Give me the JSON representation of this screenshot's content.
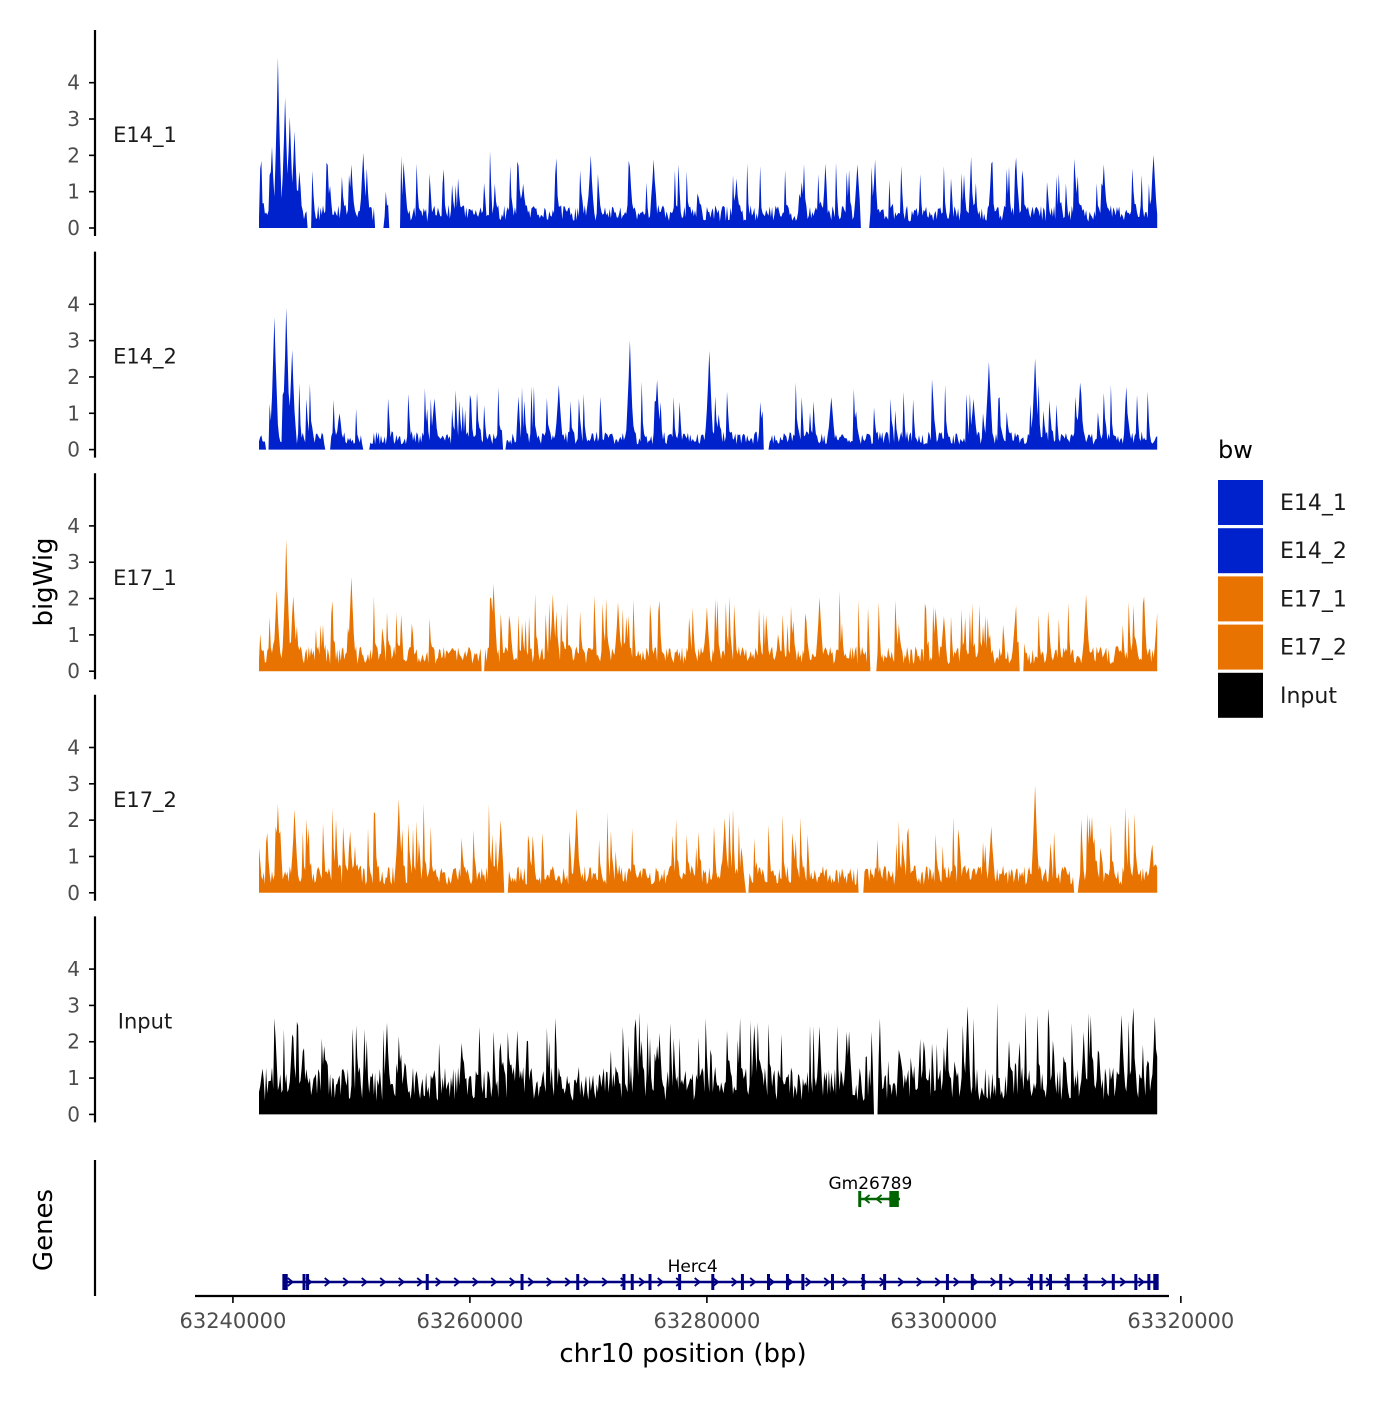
{
  "chart_data": {
    "type": "area",
    "title": "",
    "ylabel": "bigWig",
    "xlabel": "chr10 position (bp)",
    "genes_label": "Genes",
    "xlim": [
      63236800,
      63319000
    ],
    "x_ticks": [
      {
        "value": 63240000,
        "label": "63240000"
      },
      {
        "value": 63260000,
        "label": "63260000"
      },
      {
        "value": 63280000,
        "label": "63280000"
      },
      {
        "value": 63300000,
        "label": "63300000"
      },
      {
        "value": 63320000,
        "label": "63320000"
      }
    ],
    "ylim": [
      0,
      4.9
    ],
    "y_ticks": [
      {
        "value": 0,
        "label": "0"
      },
      {
        "value": 1,
        "label": "1"
      },
      {
        "value": 2,
        "label": "2"
      },
      {
        "value": 3,
        "label": "3"
      },
      {
        "value": 4,
        "label": "4"
      }
    ],
    "data_range": [
      63242200,
      63318000
    ],
    "legend": {
      "title": "bw",
      "position": "right",
      "items": [
        {
          "label": "E14_1",
          "color": "#0022CC"
        },
        {
          "label": "E14_2",
          "color": "#0022CC"
        },
        {
          "label": "E17_1",
          "color": "#E87300"
        },
        {
          "label": "E17_2",
          "color": "#E87300"
        },
        {
          "label": "Input",
          "color": "#000000"
        }
      ]
    },
    "series": [
      {
        "name": "E14_1",
        "color": "#0022CC",
        "seed": 11,
        "peaks": [
          {
            "x": 63243800,
            "y": 4.6
          },
          {
            "x": 63244400,
            "y": 3.5
          },
          {
            "x": 63243300,
            "y": 2.1
          },
          {
            "x": 63245200,
            "y": 2.6
          },
          {
            "x": 63244800,
            "y": 3.0
          },
          {
            "x": 63245600,
            "y": 1.5
          },
          {
            "x": 63250000,
            "y": 1.6
          },
          {
            "x": 63251000,
            "y": 2.0
          },
          {
            "x": 63254500,
            "y": 1.3
          },
          {
            "x": 63264500,
            "y": 1.2
          },
          {
            "x": 63270200,
            "y": 1.9
          },
          {
            "x": 63273500,
            "y": 1.6
          },
          {
            "x": 63275500,
            "y": 1.8
          },
          {
            "x": 63282500,
            "y": 1.3
          },
          {
            "x": 63288000,
            "y": 1.2
          },
          {
            "x": 63292700,
            "y": 1.7
          },
          {
            "x": 63304000,
            "y": 1.5
          },
          {
            "x": 63313500,
            "y": 1.6
          },
          {
            "x": 63317700,
            "y": 2.0
          }
        ],
        "gaps": [
          [
            63246300,
            63246600
          ],
          [
            63252000,
            63252700
          ],
          [
            63253200,
            63254100
          ],
          [
            63293000,
            63293700
          ]
        ],
        "base": 0.5,
        "noise_amp": 0.55,
        "freq": 0.95
      },
      {
        "name": "E14_2",
        "color": "#0022CC",
        "seed": 23,
        "peaks": [
          {
            "x": 63243500,
            "y": 3.6
          },
          {
            "x": 63244500,
            "y": 3.9
          },
          {
            "x": 63245000,
            "y": 2.7
          },
          {
            "x": 63249000,
            "y": 1.0
          },
          {
            "x": 63257000,
            "y": 1.4
          },
          {
            "x": 63267500,
            "y": 1.7
          },
          {
            "x": 63273500,
            "y": 3.0
          },
          {
            "x": 63275800,
            "y": 1.8
          },
          {
            "x": 63280200,
            "y": 2.7
          },
          {
            "x": 63290500,
            "y": 1.4
          },
          {
            "x": 63302500,
            "y": 1.4
          },
          {
            "x": 63303800,
            "y": 2.4
          },
          {
            "x": 63307700,
            "y": 2.4
          },
          {
            "x": 63311500,
            "y": 1.7
          },
          {
            "x": 63315500,
            "y": 0.9
          }
        ],
        "gaps": [
          [
            63242800,
            63243000
          ],
          [
            63247800,
            63248200
          ],
          [
            63251000,
            63251500
          ],
          [
            63262800,
            63263000
          ],
          [
            63284800,
            63285200
          ]
        ],
        "base": 0.4,
        "noise_amp": 0.55,
        "freq": 0.9
      },
      {
        "name": "E17_1",
        "color": "#E87300",
        "seed": 37,
        "peaks": [
          {
            "x": 63244500,
            "y": 3.6
          },
          {
            "x": 63243700,
            "y": 2.2
          },
          {
            "x": 63245100,
            "y": 2.0
          },
          {
            "x": 63250000,
            "y": 2.5
          },
          {
            "x": 63262000,
            "y": 2.4
          },
          {
            "x": 63267000,
            "y": 2.0
          },
          {
            "x": 63272500,
            "y": 1.8
          },
          {
            "x": 63280000,
            "y": 1.7
          },
          {
            "x": 63289500,
            "y": 2.0
          },
          {
            "x": 63300000,
            "y": 1.5
          },
          {
            "x": 63306000,
            "y": 1.3
          },
          {
            "x": 63312000,
            "y": 2.0
          },
          {
            "x": 63318000,
            "y": 1.6
          }
        ],
        "gaps": [
          [
            63293800,
            63294300
          ],
          [
            63306400,
            63306700
          ],
          [
            63261000,
            63261200
          ]
        ],
        "base": 0.55,
        "noise_amp": 0.6,
        "freq": 1.0
      },
      {
        "name": "E17_2",
        "color": "#E87300",
        "seed": 53,
        "peaks": [
          {
            "x": 63243800,
            "y": 2.4
          },
          {
            "x": 63245200,
            "y": 2.2
          },
          {
            "x": 63254000,
            "y": 2.5
          },
          {
            "x": 63262600,
            "y": 1.9
          },
          {
            "x": 63269000,
            "y": 2.3
          },
          {
            "x": 63281500,
            "y": 2.0
          },
          {
            "x": 63293000,
            "y": 1.2
          },
          {
            "x": 63304000,
            "y": 1.8
          },
          {
            "x": 63307700,
            "y": 2.9
          },
          {
            "x": 63312500,
            "y": 2.0
          },
          {
            "x": 63317500,
            "y": 1.0
          }
        ],
        "gaps": [
          [
            63262900,
            63263200
          ],
          [
            63283300,
            63283500
          ],
          [
            63292800,
            63293200
          ],
          [
            63311000,
            63311300
          ]
        ],
        "base": 0.6,
        "noise_amp": 0.65,
        "freq": 1.0
      },
      {
        "name": "Input",
        "color": "#000000",
        "seed": 71,
        "peaks": [
          {
            "x": 63245000,
            "y": 2.2
          },
          {
            "x": 63253000,
            "y": 2.5
          },
          {
            "x": 63264000,
            "y": 2.2
          },
          {
            "x": 63274000,
            "y": 2.5
          },
          {
            "x": 63276000,
            "y": 2.2
          },
          {
            "x": 63284000,
            "y": 2.4
          },
          {
            "x": 63289500,
            "y": 2.3
          },
          {
            "x": 63292000,
            "y": 2.2
          },
          {
            "x": 63302000,
            "y": 2.9
          },
          {
            "x": 63311800,
            "y": 2.2
          },
          {
            "x": 63315000,
            "y": 2.7
          },
          {
            "x": 63317800,
            "y": 2.6
          }
        ],
        "gaps": [
          [
            63294100,
            63294400
          ]
        ],
        "base": 1.05,
        "noise_amp": 0.65,
        "freq": 1.0
      }
    ],
    "genes": [
      {
        "name": "Herc4",
        "color": "#000080",
        "strand": "+",
        "start": 63244200,
        "end": 63318000,
        "label_x": 63278800,
        "exons": [
          63244300,
          63244500,
          63246000,
          63246300,
          63256400,
          63264400,
          63269100,
          63273000,
          63273700,
          63275200,
          63277700,
          63280500,
          63283000,
          63285200,
          63286800,
          63288100,
          63290600,
          63293200,
          63295000,
          63300300,
          63302400,
          63304800,
          63307400,
          63308200,
          63309000,
          63310500,
          63312000,
          63314300,
          63316200,
          63317300,
          63317800,
          63318000
        ]
      },
      {
        "name": "Gm26789",
        "color": "#006400",
        "strand": "-",
        "start": 63292800,
        "end": 63296300,
        "label_x": 63293800,
        "exons_wide": [
          [
            63295400,
            63296200
          ]
        ],
        "exons": [
          63292900
        ]
      }
    ]
  }
}
